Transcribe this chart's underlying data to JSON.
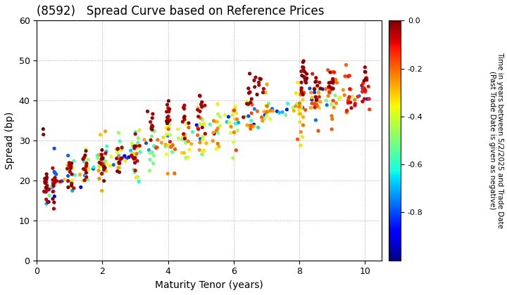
{
  "title": "(8592)   Spread Curve based on Reference Prices",
  "xlabel": "Maturity Tenor (years)",
  "ylabel": "Spread (bp)",
  "colorbar_label": "Time in years between 5/2/2025 and Trade Date\n(Past Trade Date is given as negative)",
  "xlim": [
    0,
    10.5
  ],
  "ylim": [
    0,
    60
  ],
  "xticks": [
    0,
    2,
    4,
    6,
    8,
    10
  ],
  "yticks": [
    0,
    10,
    20,
    30,
    40,
    50,
    60
  ],
  "cmap": "jet",
  "clim": [
    -1.0,
    0.0
  ],
  "cticks": [
    0.0,
    -0.2,
    -0.4,
    -0.6,
    -0.8
  ],
  "background": "#ffffff",
  "grid_color": "#aaaaaa",
  "grid_style": "dotted",
  "seed": 42,
  "figsize": [
    7.2,
    4.2
  ],
  "dpi": 100
}
